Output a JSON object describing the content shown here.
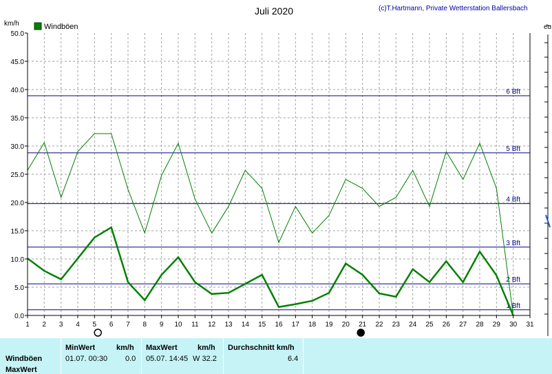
{
  "header": {
    "title": "Juli 2020",
    "credit": "(c)T.Hartmann, Private Wetterstation Ballersbach",
    "yunit": "km/h",
    "legend": "Windböen",
    "edge_text": "eu"
  },
  "colors": {
    "series": "#008000",
    "bft_line": "#000080",
    "grid": "#a0a0a0",
    "stats_bg": "#c6f4f6"
  },
  "chart_data": {
    "type": "line",
    "title": "Juli 2020",
    "ylabel": "km/h",
    "ylim": [
      0,
      50
    ],
    "xlim": [
      1,
      31
    ],
    "x_ticks": [
      "1",
      "2",
      "3",
      "4",
      "5",
      "6",
      "7",
      "8",
      "9",
      "10",
      "11",
      "12",
      "13",
      "14",
      "15",
      "16",
      "17",
      "18",
      "19",
      "20",
      "21",
      "22",
      "23",
      "24",
      "25",
      "26",
      "27",
      "28",
      "29",
      "30",
      "31"
    ],
    "y_ticks": [
      "0.0",
      "5.0",
      "10.0",
      "15.0",
      "20.0",
      "25.0",
      "30.0",
      "35.0",
      "40.0",
      "45.0",
      "50.0"
    ],
    "grid": true,
    "legend_position": "top-left",
    "moon_markers": [
      {
        "day": 5.2,
        "phase": "full"
      },
      {
        "day": 20.9,
        "phase": "new"
      }
    ],
    "beaufort_lines": [
      {
        "label": "1 Bft",
        "value": 1
      },
      {
        "label": "2 Bft",
        "value": 5.6
      },
      {
        "label": "3 Bft",
        "value": 12.1
      },
      {
        "label": "4 Bft",
        "value": 19.8
      },
      {
        "label": "5 Bft",
        "value": 28.8
      },
      {
        "label": "6 Bft",
        "value": 38.9
      }
    ],
    "series": [
      {
        "name": "Windböen",
        "style": "thin",
        "x": [
          1,
          2,
          3,
          4,
          5,
          6,
          7,
          8,
          9,
          10,
          11,
          12,
          13,
          14,
          15,
          16,
          17,
          18,
          19,
          20,
          21,
          22,
          23,
          24,
          25,
          26,
          27,
          28,
          29,
          30
        ],
        "values": [
          25.7,
          30.6,
          20.9,
          29.0,
          32.2,
          32.2,
          22.3,
          14.6,
          24.8,
          30.5,
          20.6,
          14.6,
          19.3,
          25.7,
          22.5,
          12.9,
          19.3,
          14.6,
          17.7,
          24.1,
          22.5,
          19.3,
          20.9,
          25.7,
          19.3,
          29.0,
          24.1,
          30.5,
          22.5,
          0.0
        ]
      },
      {
        "style": "thick",
        "x": [
          1,
          2,
          3,
          4,
          5,
          6,
          7,
          8,
          9,
          10,
          11,
          12,
          13,
          14,
          15,
          16,
          17,
          18,
          19,
          20,
          21,
          22,
          23,
          24,
          25,
          26,
          27,
          28,
          29,
          30
        ],
        "values": [
          10.1,
          7.9,
          6.4,
          10.1,
          13.8,
          15.6,
          5.9,
          2.7,
          7.2,
          10.3,
          5.9,
          3.8,
          4.0,
          5.6,
          7.2,
          1.5,
          2.0,
          2.6,
          4.0,
          9.2,
          7.2,
          3.9,
          3.3,
          8.2,
          5.9,
          9.6,
          5.9,
          11.3,
          7.1,
          0.0
        ]
      }
    ]
  },
  "stats": {
    "row1_label": "Windböen",
    "row2_label": "MaxWert",
    "min_header": "MinWert",
    "min_unit": "km/h",
    "min_time": "01.07.  00:30",
    "min_value": "0.0",
    "max_header": "MaxWert",
    "max_unit": "km/h",
    "max_time": "05.07.  14:45",
    "max_value": "W 32.2",
    "avg_header": "Durchschnitt km/h",
    "avg_value": "6.4"
  }
}
